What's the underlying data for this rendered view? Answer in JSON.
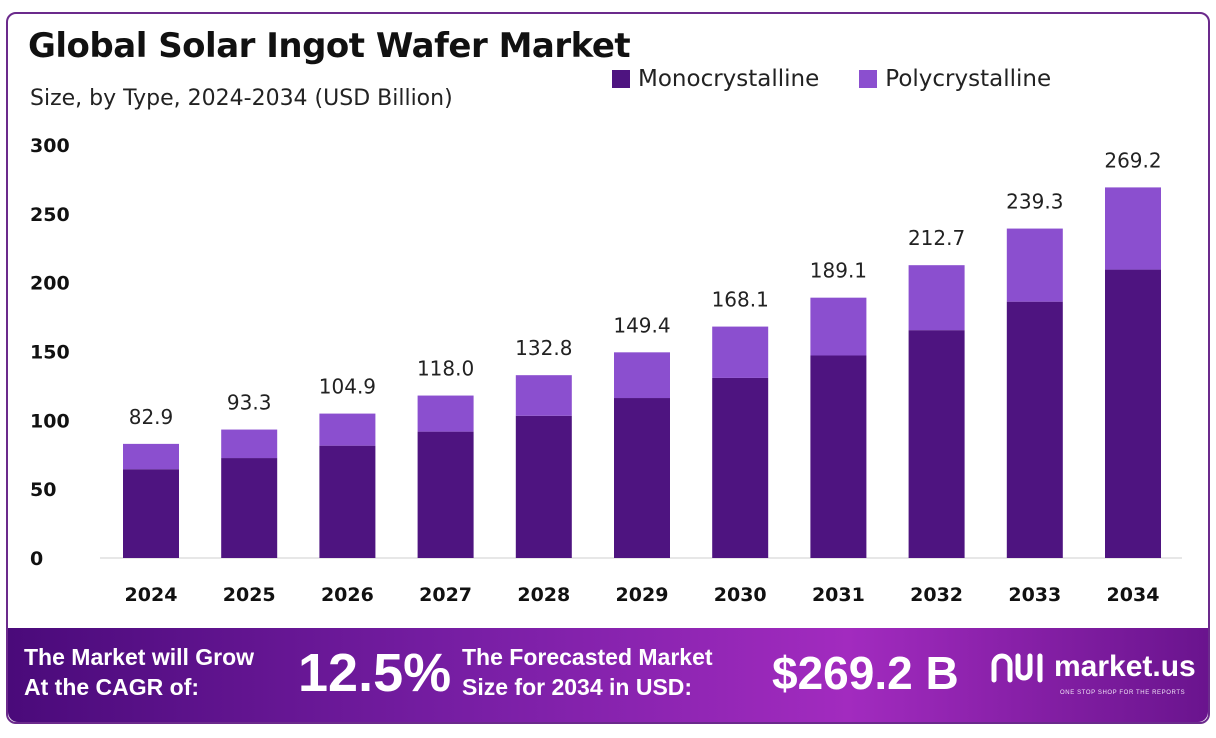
{
  "header": {
    "title": "Global Solar Ingot Wafer Market",
    "subtitle": "Size, by Type, 2024-2034 (USD Billion)"
  },
  "colors": {
    "monocrystalline": "#4e1480",
    "polycrystalline": "#8b4fcf",
    "footer_start": "#4a0a7a",
    "footer_end": "#a22bbf"
  },
  "chart_data": {
    "type": "bar",
    "stacked": true,
    "categories": [
      "2024",
      "2025",
      "2026",
      "2027",
      "2028",
      "2029",
      "2030",
      "2031",
      "2032",
      "2033",
      "2034"
    ],
    "series": [
      {
        "name": "Monocrystalline",
        "values": [
          64.5,
          72.6,
          81.6,
          91.8,
          103.3,
          116.2,
          130.8,
          147.1,
          165.5,
          186.2,
          209.5
        ]
      },
      {
        "name": "Polycrystalline",
        "values": [
          18.4,
          20.7,
          23.3,
          26.2,
          29.5,
          33.2,
          37.3,
          42.0,
          47.2,
          53.1,
          59.7
        ]
      }
    ],
    "totals": [
      82.9,
      93.3,
      104.9,
      118.0,
      132.8,
      149.4,
      168.1,
      189.1,
      212.7,
      239.3,
      269.2
    ],
    "total_labels": [
      "82.9",
      "93.3",
      "104.9",
      "118.0",
      "132.8",
      "149.4",
      "168.1",
      "189.1",
      "212.7",
      "239.3",
      "269.2"
    ],
    "yticks": [
      0,
      50,
      100,
      150,
      200,
      250,
      300
    ],
    "ylim": [
      0,
      300
    ],
    "title": "Global Solar Ingot Wafer Market",
    "subtitle": "Size, by Type, 2024-2034 (USD Billion)",
    "legend_position": "top-right",
    "grid": false
  },
  "footer": {
    "cagr_label": "The Market will Grow\nAt the CAGR of:",
    "cagr_value": "12.5%",
    "forecast_label": "The Forecasted Market\nSize for 2034 in USD:",
    "forecast_value": "$269.2 B",
    "brand_name": "market.us",
    "brand_tagline": "ONE STOP SHOP FOR THE REPORTS",
    "brand_icon": "market-us-logo-icon"
  }
}
